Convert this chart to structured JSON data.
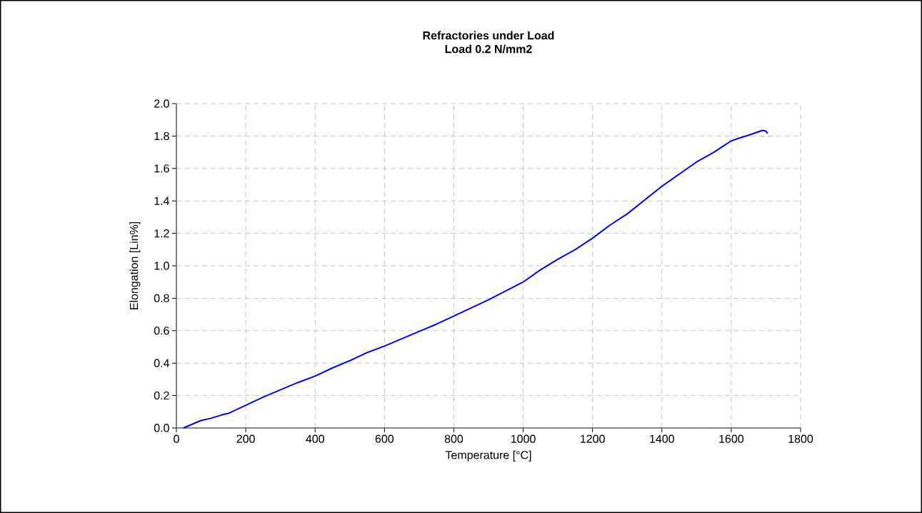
{
  "chart_data": {
    "type": "line",
    "title": "Refractories under Load",
    "subtitle": "Load 0.2 N/mm2",
    "xlabel": "Temperature [°C]",
    "ylabel": "Elongation [Lin%]",
    "x": [
      20,
      70,
      100,
      130,
      150,
      200,
      250,
      300,
      350,
      400,
      450,
      500,
      550,
      600,
      650,
      700,
      750,
      800,
      850,
      900,
      950,
      1000,
      1050,
      1100,
      1150,
      1200,
      1250,
      1300,
      1350,
      1400,
      1450,
      1500,
      1550,
      1600,
      1620,
      1650,
      1690,
      1700,
      1705
    ],
    "series": [
      {
        "color": "#0000ff",
        "values": [
          0.0,
          0.045,
          0.06,
          0.08,
          0.09,
          0.14,
          0.19,
          0.235,
          0.28,
          0.32,
          0.37,
          0.415,
          0.465,
          0.505,
          0.55,
          0.595,
          0.64,
          0.69,
          0.74,
          0.79,
          0.845,
          0.9,
          0.975,
          1.04,
          1.1,
          1.17,
          1.25,
          1.32,
          1.405,
          1.49,
          1.565,
          1.64,
          1.7,
          1.77,
          1.785,
          1.805,
          1.835,
          1.83,
          1.815
        ]
      }
    ],
    "xlim": [
      0,
      1800
    ],
    "xticks": [
      0,
      200,
      400,
      600,
      800,
      1000,
      1200,
      1400,
      1600,
      1800
    ],
    "ylim": [
      0,
      2
    ],
    "yticks": [
      {
        "value": 0,
        "label": "0.0"
      },
      {
        "value": 0.2,
        "label": "0.2"
      },
      {
        "value": 0.4,
        "label": "0.4"
      },
      {
        "value": 0.6,
        "label": "0.6"
      },
      {
        "value": 0.8,
        "label": "0.8"
      },
      {
        "value": 1.0,
        "label": "1.0"
      },
      {
        "value": 1.2,
        "label": "1.2"
      },
      {
        "value": 1.4,
        "label": "1.4"
      },
      {
        "value": 1.6,
        "label": "1.6"
      },
      {
        "value": 1.8,
        "label": "1.8"
      },
      {
        "value": 2.0,
        "label": "2.0"
      }
    ],
    "grid": true
  }
}
